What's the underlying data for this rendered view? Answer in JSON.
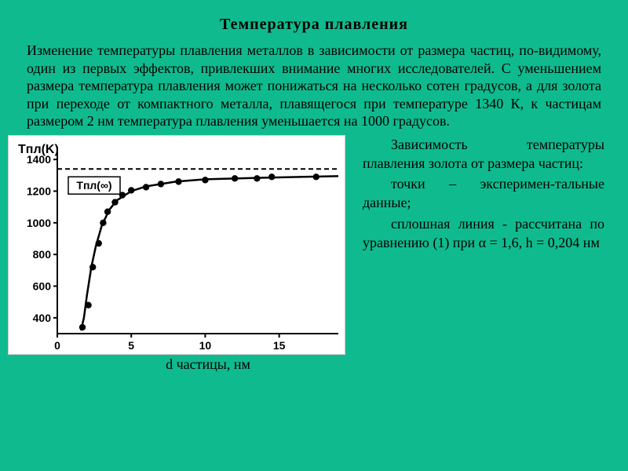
{
  "title": "Температура плавления",
  "paragraph": "Изменение температуры плавления металлов в зависимости от размера частиц, по-видимому, один из первых эффектов, привлекших внимание многих исследователей. С уменьшением размера температура плавления может понижаться на несколько сотен градусов, а для золота при переходе от компактного металла, плавящегося при температуре 1340 К, к частицам размером 2 нм температура плавления уменьшается на 1000 градусов.",
  "caption_line1": "Зависимость температуры плавления золота от размера частиц:",
  "caption_line2": "точки – эксперимен-тальные данные;",
  "caption_line3": "сплошная линия - рассчитана по уравнению (1) при α = 1,6, h = 0,204 нм",
  "xlabel": "d частицы, нм",
  "chart": {
    "type": "scatter-line",
    "ylabel": "Tпл(K)",
    "asymptote_label": "Tпл(∞)",
    "xlim": [
      0,
      19
    ],
    "ylim": [
      300,
      1480
    ],
    "xticks": [
      0,
      5,
      10,
      15
    ],
    "yticks": [
      400,
      600,
      800,
      1000,
      1200,
      1400
    ],
    "asymptote_y": 1340,
    "points": [
      {
        "x": 1.7,
        "y": 340
      },
      {
        "x": 2.1,
        "y": 480
      },
      {
        "x": 2.4,
        "y": 720
      },
      {
        "x": 2.8,
        "y": 870
      },
      {
        "x": 3.1,
        "y": 1000
      },
      {
        "x": 3.4,
        "y": 1070
      },
      {
        "x": 3.9,
        "y": 1130
      },
      {
        "x": 4.4,
        "y": 1175
      },
      {
        "x": 5.0,
        "y": 1205
      },
      {
        "x": 6.0,
        "y": 1225
      },
      {
        "x": 7.0,
        "y": 1245
      },
      {
        "x": 8.2,
        "y": 1260
      },
      {
        "x": 10.0,
        "y": 1270
      },
      {
        "x": 12.0,
        "y": 1280
      },
      {
        "x": 13.5,
        "y": 1280
      },
      {
        "x": 14.5,
        "y": 1290
      },
      {
        "x": 17.5,
        "y": 1290
      }
    ],
    "curve": [
      {
        "x": 1.6,
        "y": 320
      },
      {
        "x": 1.8,
        "y": 400
      },
      {
        "x": 2.0,
        "y": 540
      },
      {
        "x": 2.3,
        "y": 720
      },
      {
        "x": 2.6,
        "y": 850
      },
      {
        "x": 3.0,
        "y": 980
      },
      {
        "x": 3.5,
        "y": 1080
      },
      {
        "x": 4.0,
        "y": 1140
      },
      {
        "x": 5.0,
        "y": 1200
      },
      {
        "x": 6.0,
        "y": 1230
      },
      {
        "x": 8.0,
        "y": 1260
      },
      {
        "x": 10.0,
        "y": 1275
      },
      {
        "x": 14.0,
        "y": 1285
      },
      {
        "x": 19.0,
        "y": 1295
      }
    ],
    "axis_color": "#000000",
    "marker_color": "#000000",
    "marker_radius": 4.2,
    "line_color": "#000000",
    "line_width": 2.5,
    "dash_pattern": "6,4",
    "tick_fontsize": 14,
    "label_fontsize": 16,
    "background": "#ffffff"
  }
}
